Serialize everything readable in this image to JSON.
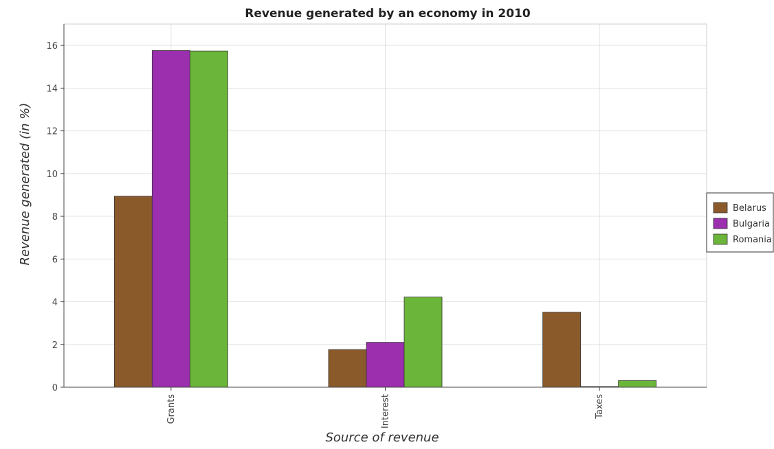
{
  "chart_data": {
    "type": "bar",
    "title": "Revenue generated by an economy in 2010",
    "xlabel": "Source of revenue",
    "ylabel": "Revenue generated (in %)",
    "categories": [
      "Grants",
      "Interest",
      "Taxes"
    ],
    "ylim": [
      0,
      17
    ],
    "yticks": [
      "0",
      "2",
      "4",
      "6",
      "8",
      "10",
      "12",
      "14",
      "16"
    ],
    "grid": true,
    "legend_position": "right",
    "series": [
      {
        "name": "Belarus",
        "color": "#8b5a2b",
        "values": [
          8.94,
          1.76,
          3.51
        ]
      },
      {
        "name": "Bulgaria",
        "color": "#9b2fae",
        "values": [
          15.76,
          2.1,
          0.01
        ]
      },
      {
        "name": "Romania",
        "color": "#6bb53a",
        "values": [
          15.74,
          4.22,
          0.31
        ]
      }
    ]
  }
}
